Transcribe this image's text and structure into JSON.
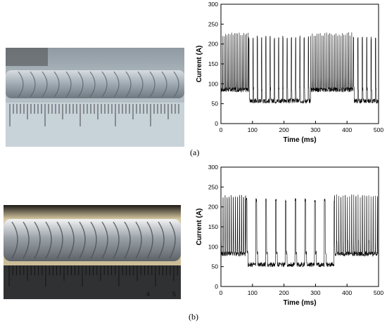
{
  "panels": [
    {
      "label": "(a)"
    },
    {
      "label": "(b)"
    }
  ],
  "chart_data": [
    {
      "type": "line",
      "title": "",
      "xlabel": "Time  (ms)",
      "ylabel": "Current  (A)",
      "xlim": [
        0,
        500
      ],
      "ylim": [
        0,
        300
      ],
      "xticks": [
        0,
        100,
        200,
        300,
        400,
        500
      ],
      "yticks": [
        0,
        50,
        100,
        150,
        200,
        250,
        300
      ],
      "grid": false,
      "line_color": "#000000",
      "segments": [
        {
          "start": 0,
          "end": 88,
          "base": 85,
          "peak": 225,
          "period": 4.8
        },
        {
          "start": 88,
          "end": 285,
          "base": 57,
          "peak": 217,
          "period": 13.5
        },
        {
          "start": 285,
          "end": 420,
          "base": 85,
          "peak": 226,
          "period": 5.0
        },
        {
          "start": 420,
          "end": 500,
          "base": 57,
          "peak": 215,
          "period": 14
        }
      ]
    },
    {
      "type": "line",
      "title": "",
      "xlabel": "Time  (ms)",
      "ylabel": "Current  (A)",
      "xlim": [
        0,
        500
      ],
      "ylim": [
        0,
        300
      ],
      "xticks": [
        0,
        100,
        200,
        300,
        400,
        500
      ],
      "yticks": [
        0,
        50,
        100,
        150,
        200,
        250,
        300
      ],
      "grid": false,
      "line_color": "#000000",
      "segments": [
        {
          "start": 0,
          "end": 80,
          "base": 82,
          "peak": 226,
          "period": 6.5
        },
        {
          "start": 80,
          "end": 360,
          "base": 55,
          "peak": 218,
          "period": 31
        },
        {
          "start": 360,
          "end": 498,
          "base": 82,
          "peak": 228,
          "period": 6.8
        }
      ]
    }
  ],
  "photos": [
    {
      "scale_major": [
        "",
        "",
        ""
      ]
    },
    {
      "scale_digits": [
        "4",
        "5"
      ]
    }
  ]
}
